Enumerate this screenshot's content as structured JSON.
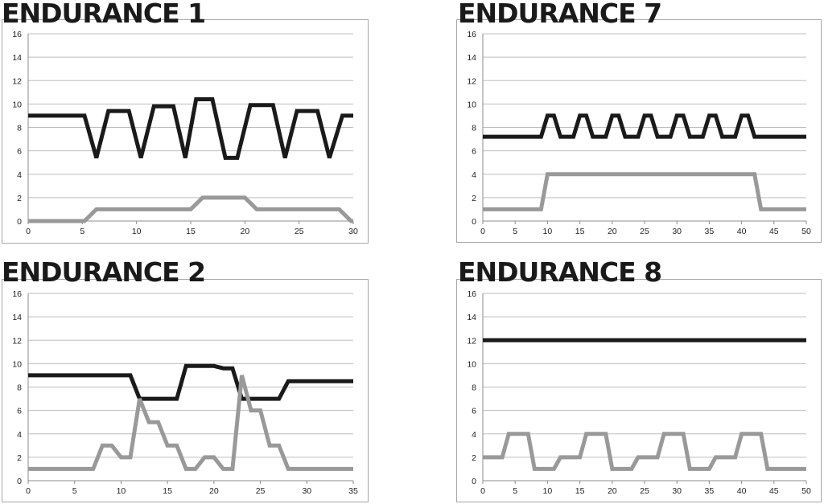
{
  "chart_data": [
    {
      "type": "line",
      "title": "ENDURANCE 1",
      "ylim": [
        0,
        16
      ],
      "yticks": [
        0,
        2,
        4,
        6,
        8,
        10,
        12,
        14,
        16
      ],
      "xlim": [
        0,
        30
      ],
      "xticks": [
        0,
        5,
        10,
        15,
        20,
        25,
        30
      ],
      "grid": true,
      "series": [
        {
          "color": "#1a1a1a",
          "points": [
            [
              0,
              9
            ],
            [
              4,
              9
            ],
            [
              5.2,
              9
            ],
            [
              6.3,
              5.4
            ],
            [
              7.4,
              9.4
            ],
            [
              9,
              9.4
            ],
            [
              9.3,
              9.4
            ],
            [
              10.4,
              5.4
            ],
            [
              11.6,
              9.8
            ],
            [
              13.2,
              9.8
            ],
            [
              13.4,
              9.8
            ],
            [
              14.5,
              5.4
            ],
            [
              15.5,
              10.4
            ],
            [
              17,
              10.4
            ],
            [
              18.2,
              5.4
            ],
            [
              19.3,
              5.4
            ],
            [
              20.5,
              9.9
            ],
            [
              22.1,
              9.9
            ],
            [
              22.6,
              9.9
            ],
            [
              23.7,
              5.4
            ],
            [
              24.8,
              9.4
            ],
            [
              26.4,
              9.4
            ],
            [
              26.7,
              9.4
            ],
            [
              27.8,
              5.4
            ],
            [
              29,
              9
            ],
            [
              32,
              9
            ]
          ]
        },
        {
          "color": "#999999",
          "points": [
            [
              0,
              0
            ],
            [
              5.2,
              0
            ],
            [
              6.3,
              1
            ],
            [
              15,
              1
            ],
            [
              16.1,
              2
            ],
            [
              20,
              2
            ],
            [
              21.1,
              1
            ],
            [
              28.7,
              1
            ],
            [
              29.8,
              0
            ],
            [
              32,
              0
            ]
          ]
        }
      ]
    },
    {
      "type": "line",
      "title": "ENDURANCE 7",
      "ylim": [
        0,
        16
      ],
      "yticks": [
        0,
        2,
        4,
        6,
        8,
        10,
        12,
        14,
        16
      ],
      "xlim": [
        0,
        50
      ],
      "xticks": [
        0,
        5,
        10,
        15,
        20,
        25,
        30,
        35,
        40,
        45,
        50
      ],
      "grid": true,
      "series": [
        {
          "color": "#1a1a1a",
          "points": [
            [
              0,
              7.2
            ],
            [
              9,
              7.2
            ],
            [
              10,
              9
            ],
            [
              11,
              9
            ],
            [
              12,
              7.2
            ],
            [
              14,
              7.2
            ],
            [
              15,
              9
            ],
            [
              16,
              9
            ],
            [
              17,
              7.2
            ],
            [
              19,
              7.2
            ],
            [
              20,
              9
            ],
            [
              21,
              9
            ],
            [
              22,
              7.2
            ],
            [
              24,
              7.2
            ],
            [
              25,
              9
            ],
            [
              26,
              9
            ],
            [
              27,
              7.2
            ],
            [
              29,
              7.2
            ],
            [
              30,
              9
            ],
            [
              31,
              9
            ],
            [
              32,
              7.2
            ],
            [
              34,
              7.2
            ],
            [
              35,
              9
            ],
            [
              36,
              9
            ],
            [
              37,
              7.2
            ],
            [
              39,
              7.2
            ],
            [
              40,
              9
            ],
            [
              41,
              9
            ],
            [
              42,
              7.2
            ],
            [
              50,
              7.2
            ]
          ]
        },
        {
          "color": "#999999",
          "points": [
            [
              0,
              1
            ],
            [
              9,
              1
            ],
            [
              10,
              4
            ],
            [
              42,
              4
            ],
            [
              43,
              1
            ],
            [
              50,
              1
            ]
          ]
        }
      ]
    },
    {
      "type": "line",
      "title": "ENDURANCE 2",
      "ylim": [
        0,
        16
      ],
      "yticks": [
        0,
        2,
        4,
        6,
        8,
        10,
        12,
        14,
        16
      ],
      "xlim": [
        0,
        35
      ],
      "xticks": [
        0,
        5,
        10,
        15,
        20,
        25,
        30,
        35
      ],
      "grid": true,
      "series": [
        {
          "color": "#1a1a1a",
          "points": [
            [
              0,
              9
            ],
            [
              11,
              9
            ],
            [
              12,
              7
            ],
            [
              16,
              7
            ],
            [
              17,
              9.8
            ],
            [
              20,
              9.8
            ],
            [
              21,
              9.6
            ],
            [
              22,
              9.6
            ],
            [
              23,
              7
            ],
            [
              27,
              7
            ],
            [
              28,
              8.5
            ],
            [
              35,
              8.5
            ]
          ]
        },
        {
          "color": "#999999",
          "points": [
            [
              0,
              1
            ],
            [
              7,
              1
            ],
            [
              8,
              3
            ],
            [
              9,
              3
            ],
            [
              10,
              2
            ],
            [
              11,
              2
            ],
            [
              12,
              7
            ],
            [
              13,
              5
            ],
            [
              14,
              5
            ],
            [
              15,
              3
            ],
            [
              16,
              3
            ],
            [
              17,
              1
            ],
            [
              18,
              1
            ],
            [
              19,
              2
            ],
            [
              20,
              2
            ],
            [
              21,
              1
            ],
            [
              22,
              1
            ],
            [
              23,
              9
            ],
            [
              24,
              6
            ],
            [
              25,
              6
            ],
            [
              26,
              3
            ],
            [
              27,
              3
            ],
            [
              28,
              1
            ],
            [
              35,
              1
            ]
          ]
        }
      ]
    },
    {
      "type": "line",
      "title": "ENDURANCE 8",
      "ylim": [
        0,
        16
      ],
      "yticks": [
        0,
        2,
        4,
        6,
        8,
        10,
        12,
        14,
        16
      ],
      "xlim": [
        0,
        50
      ],
      "xticks": [
        0,
        5,
        10,
        15,
        20,
        25,
        30,
        35,
        40,
        45,
        50
      ],
      "grid": true,
      "series": [
        {
          "color": "#1a1a1a",
          "points": [
            [
              0,
              12
            ],
            [
              50,
              12
            ]
          ]
        },
        {
          "color": "#999999",
          "points": [
            [
              0,
              2
            ],
            [
              3,
              2
            ],
            [
              4,
              4
            ],
            [
              7,
              4
            ],
            [
              8,
              1
            ],
            [
              11,
              1
            ],
            [
              12,
              2
            ],
            [
              15,
              2
            ],
            [
              16,
              4
            ],
            [
              19,
              4
            ],
            [
              20,
              1
            ],
            [
              23,
              1
            ],
            [
              24,
              2
            ],
            [
              27,
              2
            ],
            [
              28,
              4
            ],
            [
              31,
              4
            ],
            [
              32,
              1
            ],
            [
              35,
              1
            ],
            [
              36,
              2
            ],
            [
              39,
              2
            ],
            [
              40,
              4
            ],
            [
              43,
              4
            ],
            [
              44,
              1
            ],
            [
              50,
              1
            ]
          ]
        }
      ]
    }
  ]
}
